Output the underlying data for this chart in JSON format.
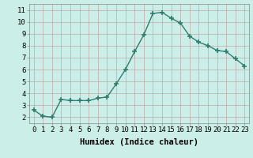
{
  "x": [
    0,
    1,
    2,
    3,
    4,
    5,
    6,
    7,
    8,
    9,
    10,
    11,
    12,
    13,
    14,
    15,
    16,
    17,
    18,
    19,
    20,
    21,
    22,
    23
  ],
  "y": [
    2.6,
    2.1,
    2.0,
    3.5,
    3.4,
    3.4,
    3.4,
    3.6,
    3.7,
    4.8,
    6.0,
    7.5,
    8.9,
    10.7,
    10.8,
    10.3,
    9.9,
    8.8,
    8.3,
    8.0,
    7.6,
    7.5,
    6.9,
    6.3
  ],
  "line_color": "#2e7d6e",
  "marker": "+",
  "markersize": 4,
  "linewidth": 1.0,
  "bg_color": "#cceee8",
  "grid_color": "#c0a8a8",
  "xlabel": "Humidex (Indice chaleur)",
  "xlim": [
    -0.5,
    23.5
  ],
  "ylim": [
    1.5,
    11.5
  ],
  "yticks": [
    2,
    3,
    4,
    5,
    6,
    7,
    8,
    9,
    10,
    11
  ],
  "xticks": [
    0,
    1,
    2,
    3,
    4,
    5,
    6,
    7,
    8,
    9,
    10,
    11,
    12,
    13,
    14,
    15,
    16,
    17,
    18,
    19,
    20,
    21,
    22,
    23
  ],
  "xlabel_fontsize": 7.5,
  "tick_fontsize": 6.5
}
